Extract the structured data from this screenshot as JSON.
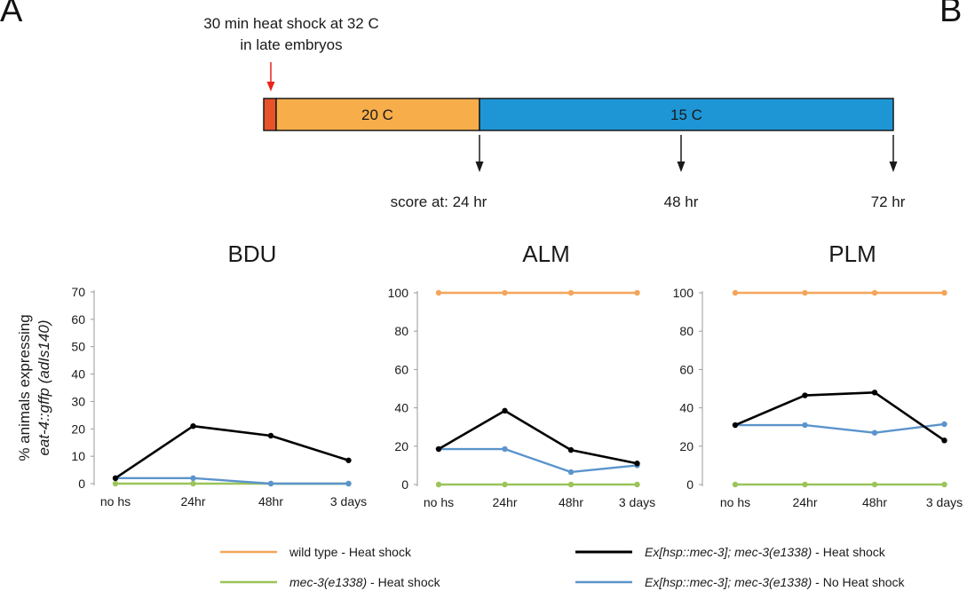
{
  "panels": {
    "a": "A",
    "b": "B"
  },
  "timeline": {
    "heat_shock_note_line1": "30 min heat shock at 32 C",
    "heat_shock_note_line2": "in late embryos",
    "segment_20c_label": "20 C",
    "segment_15c_label": "15 C",
    "score_24": "score at: 24 hr",
    "score_48": "48 hr",
    "score_72": "72 hr",
    "colors": {
      "heat_shock": "#e8532a",
      "warm": "#f7ae4a",
      "cool": "#1e96d6",
      "arrow_red": "#e8241c"
    }
  },
  "ylabel_line1": "% animals expressing",
  "ylabel_line2": "eat-4::gffp (adIs140)",
  "chart_data": [
    {
      "type": "line",
      "title": "BDU",
      "categories": [
        "no hs",
        "24hr",
        "48hr",
        "3 days"
      ],
      "ylim": [
        0,
        70
      ],
      "yticks": [
        0,
        10,
        20,
        30,
        40,
        50,
        60,
        70
      ],
      "series": [
        {
          "key": "ex_hs",
          "values": [
            2,
            21,
            17.5,
            8.5
          ]
        },
        {
          "key": "ex_nohs",
          "values": [
            2,
            2,
            0,
            0
          ]
        },
        {
          "key": "mec3_hs",
          "values": [
            0,
            0,
            0,
            0
          ]
        }
      ]
    },
    {
      "type": "line",
      "title": "ALM",
      "categories": [
        "no hs",
        "24hr",
        "48hr",
        "3 days"
      ],
      "ylim": [
        0,
        100
      ],
      "yticks": [
        0,
        20,
        40,
        60,
        80,
        100
      ],
      "series": [
        {
          "key": "wt_hs",
          "values": [
            100,
            100,
            100,
            100
          ]
        },
        {
          "key": "ex_hs",
          "values": [
            18.5,
            38.5,
            18,
            11
          ]
        },
        {
          "key": "ex_nohs",
          "values": [
            18.5,
            18.5,
            6.5,
            10
          ]
        },
        {
          "key": "mec3_hs",
          "values": [
            0,
            0,
            0,
            0
          ]
        }
      ]
    },
    {
      "type": "line",
      "title": "PLM",
      "categories": [
        "no hs",
        "24hr",
        "48hr",
        "3 days"
      ],
      "ylim": [
        0,
        100
      ],
      "yticks": [
        0,
        20,
        40,
        60,
        80,
        100
      ],
      "series": [
        {
          "key": "wt_hs",
          "values": [
            100,
            100,
            100,
            100
          ]
        },
        {
          "key": "ex_hs",
          "values": [
            31,
            46.5,
            48,
            23
          ]
        },
        {
          "key": "ex_nohs",
          "values": [
            31,
            31,
            27,
            31.5
          ]
        },
        {
          "key": "mec3_hs",
          "values": [
            0,
            0,
            0,
            0
          ]
        }
      ]
    }
  ],
  "legend": [
    {
      "key": "wt_hs",
      "label_italic": "",
      "label_rest": "wild type - Heat shock",
      "color": "#f4a55a"
    },
    {
      "key": "ex_hs",
      "label_italic": "Ex[hsp::mec-3]; mec-3(e1338)",
      "label_rest": " - Heat shock",
      "color": "#000000"
    },
    {
      "key": "mec3_hs",
      "label_italic": "mec-3(e1338)",
      "label_rest": " - Heat shock",
      "color": "#9bc45a"
    },
    {
      "key": "ex_nohs",
      "label_italic": "Ex[hsp::mec-3]; mec-3(e1338)",
      "label_rest": " - No Heat shock",
      "color": "#5b94cc"
    }
  ]
}
